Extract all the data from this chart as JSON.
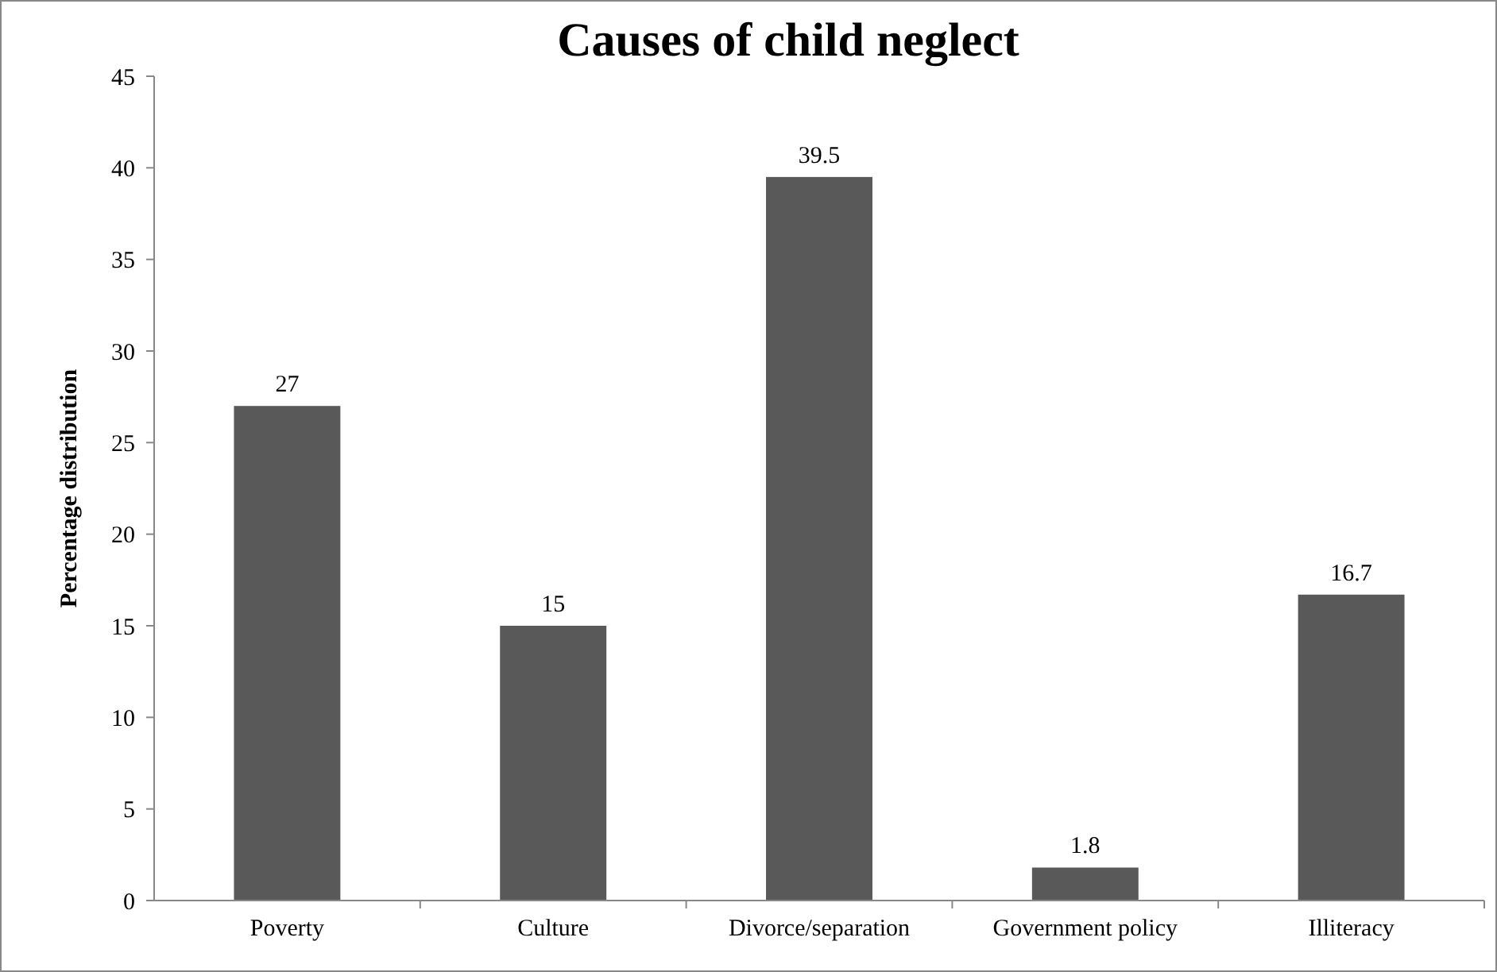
{
  "chart_data": {
    "type": "bar",
    "title": "Causes of child neglect",
    "ylabel": "Percentage distribution",
    "categories": [
      "Poverty",
      "Culture",
      "Divorce/separation",
      "Government policy",
      "Illiteracy"
    ],
    "values": [
      27,
      15,
      39.5,
      1.8,
      16.7
    ],
    "color": "#595959",
    "data_labels": true,
    "ylim": [
      0,
      45
    ],
    "yticks": [
      0,
      5,
      10,
      15,
      20,
      25,
      30,
      35,
      40,
      45
    ],
    "grid": false
  }
}
